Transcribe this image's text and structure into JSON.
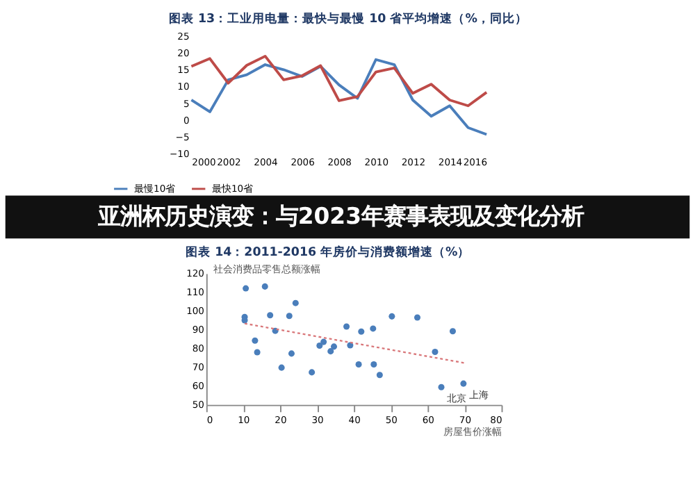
{
  "chart_data": [
    {
      "type": "line",
      "title": "图表 13：工业用电量：最快与最慢 10 省平均增速（%，同比）",
      "x": [
        2000,
        2001,
        2002,
        2003,
        2004,
        2005,
        2006,
        2007,
        2008,
        2009,
        2010,
        2011,
        2012,
        2013,
        2014,
        2015,
        2016
      ],
      "xlim": [
        2000,
        2016
      ],
      "xticks": [
        2000,
        2002,
        2004,
        2006,
        2008,
        2010,
        2012,
        2014,
        2016
      ],
      "ylim": [
        -10,
        25
      ],
      "yticks": [
        -10,
        -5,
        0,
        5,
        10,
        15,
        20,
        25
      ],
      "legend": "bottom",
      "series": [
        {
          "name": "最慢10省",
          "color": "#4a7ebb",
          "values": [
            6,
            2.5,
            12,
            13.5,
            16.5,
            15,
            13,
            16,
            10.5,
            6.5,
            18,
            16.5,
            6,
            1.2,
            4.3,
            -2.2,
            -4.2
          ]
        },
        {
          "name": "最快10省",
          "color": "#be4b48",
          "values": [
            16,
            18.3,
            11,
            16.3,
            19,
            12,
            13.2,
            16.2,
            5.8,
            7,
            14.3,
            15.5,
            8,
            10.7,
            6,
            4.3,
            8.3
          ]
        }
      ]
    },
    {
      "type": "other",
      "title": "亚洲杯历史演变：与2023年赛事表现及变化分析"
    },
    {
      "type": "scatter",
      "title": "图表 14：2011-2016 年房价与消费额增速（%）",
      "xlabel": "房屋售价涨幅",
      "ylabel": "社会消费品零售总额涨幅",
      "xlim": [
        0,
        80
      ],
      "xticks": [
        0,
        10,
        20,
        30,
        40,
        50,
        60,
        70,
        80
      ],
      "ylim": [
        50,
        120
      ],
      "yticks": [
        50,
        60,
        70,
        80,
        90,
        100,
        110,
        120
      ],
      "series": [
        {
          "color": "#4a7ebb",
          "x": [
            10.7,
            15.9,
            10.4,
            10.4,
            24.2,
            17.3,
            22.5,
            18.7,
            13.2,
            13.8,
            23.1,
            20.4,
            28.6,
            30.7,
            31.8,
            33.7,
            34.6,
            38,
            39,
            41.3,
            42,
            45.2,
            45.4,
            47,
            50.3,
            57.2,
            62,
            66.8,
            63.7,
            69.7
          ],
          "values": [
            112,
            113,
            96.8,
            95,
            104.2,
            97.7,
            97.3,
            89.4,
            84.2,
            78,
            77.3,
            69.8,
            67.3,
            81.5,
            83.5,
            78.5,
            81,
            91.7,
            81.7,
            71.5,
            89,
            90.6,
            71.5,
            65.9,
            97.1,
            96.5,
            78.2,
            89.2,
            59.4,
            61.3
          ]
        },
        {
          "type": "line",
          "color": "#d9777a",
          "line_style": "dotted",
          "x": [
            10.4,
            69.9
          ],
          "values": [
            93.3,
            72.3
          ]
        }
      ],
      "annotations": [
        {
          "text": "北京",
          "x": 63.7,
          "y": 59.4
        },
        {
          "text": "上海",
          "x": 69.7,
          "y": 61.3
        }
      ]
    }
  ]
}
